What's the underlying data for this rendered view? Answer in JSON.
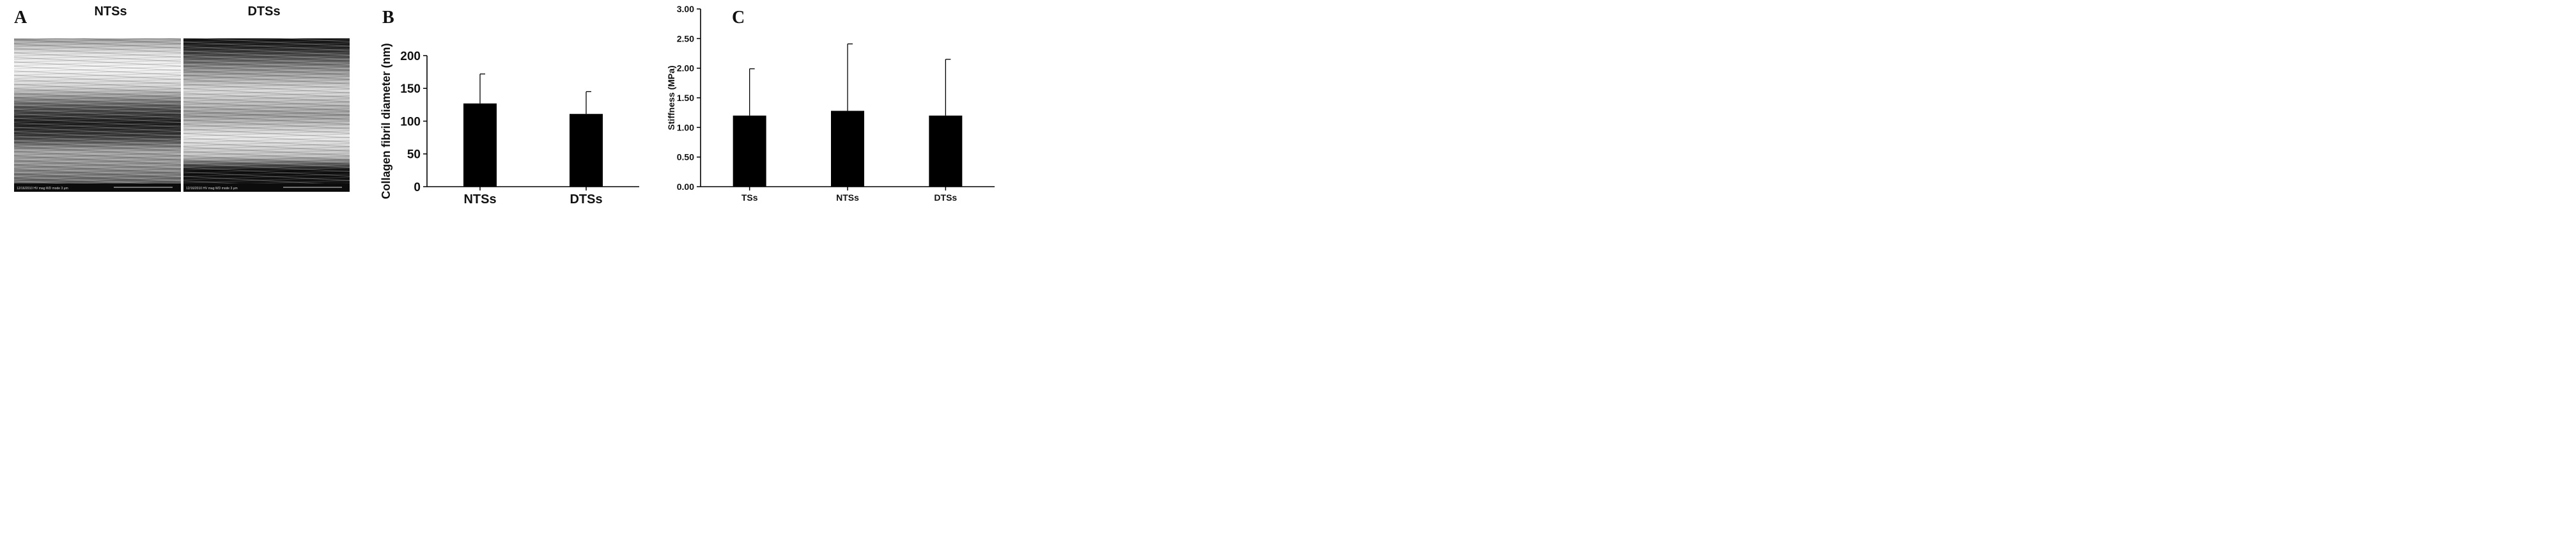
{
  "panels": {
    "a_letter": "A",
    "b_letter": "B",
    "c_letter": "C"
  },
  "sem": {
    "left_title": "NTSs",
    "right_title": "DTSs",
    "left_info": "12/16/2010  HV   mag   WD   mode   3 μm",
    "right_info": "12/16/2010  HV   mag   WD   mode   3 μm"
  },
  "chart_data": [
    {
      "type": "bar",
      "categories": [
        "NTSs",
        "DTSs"
      ],
      "values": [
        127,
        111
      ],
      "errors": [
        45,
        34
      ],
      "ylabel": "Collagen fibril diameter (nm)",
      "xlabel": "",
      "ylim": [
        0,
        200
      ],
      "yticks": [
        "0",
        "50",
        "100",
        "150",
        "200"
      ],
      "grid": false,
      "bar_color": "#000000"
    },
    {
      "type": "bar",
      "categories": [
        "TSs",
        "NTSs",
        "DTSs"
      ],
      "values": [
        1.2,
        1.28,
        1.2
      ],
      "errors": [
        0.79,
        1.13,
        0.95
      ],
      "ylabel": "Stiffness (MPa)",
      "xlabel": "",
      "ylim": [
        0,
        3
      ],
      "yticks": [
        "0.00",
        "0.50",
        "1.00",
        "1.50",
        "2.00",
        "2.50",
        "3.00"
      ],
      "grid": false,
      "bar_color": "#000000"
    }
  ]
}
